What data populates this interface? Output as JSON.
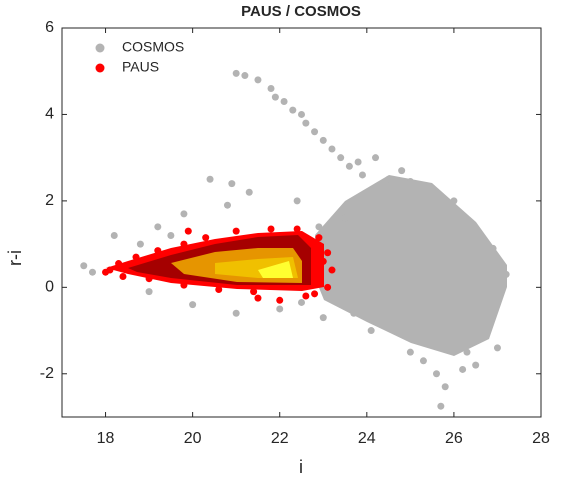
{
  "chart_data": {
    "type": "scatter",
    "title": "PAUS / COSMOS",
    "x_label": "i",
    "y_label": "r-i",
    "xlim": [
      17,
      28
    ],
    "xticks": [
      18,
      20,
      22,
      24,
      26,
      28
    ],
    "ylim": [
      -3,
      6
    ],
    "yticks": [
      -2,
      0,
      2,
      4,
      6
    ],
    "legend": "upper left",
    "series": [
      {
        "name": "COSMOS",
        "color": "#b3b3b3",
        "x": [
          21,
          21.2,
          21.5,
          21.8,
          21.9,
          22.1,
          22.3,
          22.6,
          22.8,
          23,
          23.2,
          23.4,
          23.6,
          23.9,
          24.2,
          22.5,
          23.8,
          24.5,
          25,
          25.5,
          20.4,
          20.9,
          19.8,
          19.2,
          20.8,
          21.3,
          22.4,
          18.2,
          17.5,
          17.7,
          19,
          20,
          21,
          22,
          23,
          24.1,
          25,
          25.6,
          25.8,
          25.7,
          26.2,
          26.5,
          27,
          27.2,
          26.9,
          26,
          24.8,
          23.5,
          22.9,
          23.7,
          22.5,
          18.8,
          19.5,
          26.3,
          25.3
        ],
        "values": [
          4.95,
          4.9,
          4.8,
          4.6,
          4.4,
          4.3,
          4.1,
          3.8,
          3.6,
          3.4,
          3.2,
          3.0,
          2.8,
          2.6,
          3.0,
          4.0,
          2.9,
          2.5,
          2.45,
          2.3,
          2.5,
          2.4,
          1.7,
          1.4,
          1.9,
          2.2,
          2.0,
          1.2,
          0.5,
          0.35,
          -0.1,
          -0.4,
          -0.6,
          -0.5,
          -0.7,
          -1.0,
          -1.5,
          -2.0,
          -2.3,
          -2.75,
          -1.9,
          -1.8,
          -1.4,
          0.3,
          0.9,
          2.0,
          2.7,
          1.6,
          1.4,
          -0.6,
          -0.35,
          1.0,
          1.2,
          -1.5,
          -1.7
        ]
      },
      {
        "name": "PAUS",
        "color": "#ff0000",
        "x": [
          18.1,
          18.3,
          18,
          18.7,
          19.2,
          19.8,
          20.3,
          21,
          21.8,
          22.4,
          22.9,
          23.1,
          23.2,
          23.1,
          22.8,
          22,
          21.4,
          20.6,
          19.8,
          19,
          18.4,
          23,
          22.6,
          19.9,
          21.5
        ],
        "values": [
          0.4,
          0.55,
          0.35,
          0.7,
          0.85,
          1.0,
          1.15,
          1.3,
          1.35,
          1.35,
          1.15,
          0.8,
          0.4,
          0.0,
          -0.15,
          -0.3,
          -0.1,
          -0.05,
          0.05,
          0.2,
          0.25,
          0.6,
          -0.2,
          1.3,
          -0.25
        ]
      }
    ]
  }
}
